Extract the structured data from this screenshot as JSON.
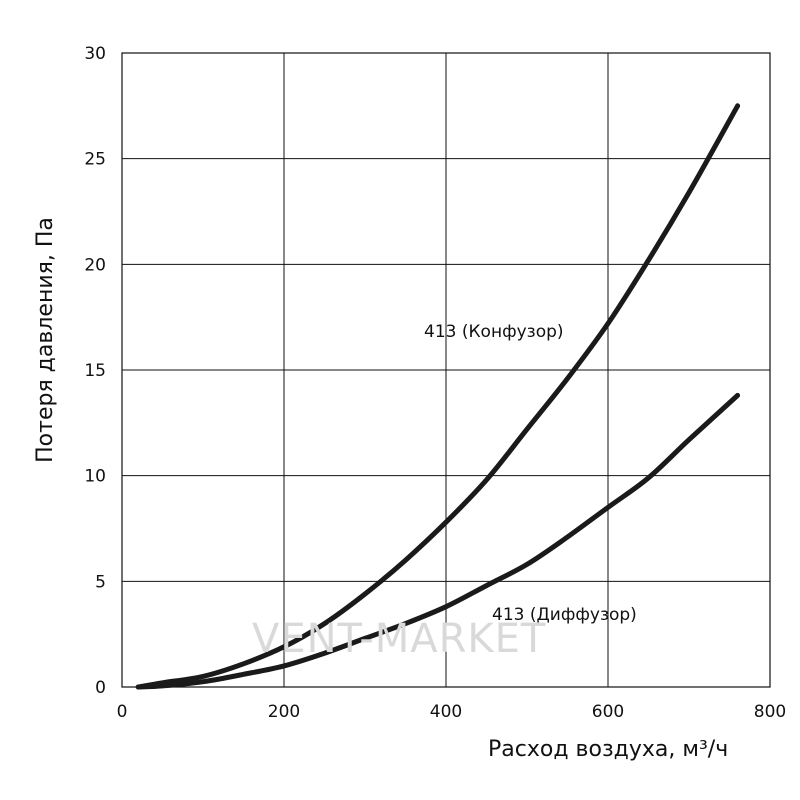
{
  "chart_data": {
    "type": "line",
    "title": "",
    "xlabel": "Расход воздуха, м³/ч",
    "ylabel": "Потеря давления, Па",
    "xlim": [
      0,
      800
    ],
    "ylim": [
      0,
      30
    ],
    "xticks": [
      0,
      200,
      400,
      600,
      800
    ],
    "yticks": [
      0,
      5,
      10,
      15,
      20,
      25,
      30
    ],
    "grid": true,
    "legend": "none",
    "watermark": "VENT-MARKET",
    "series": [
      {
        "name": "413 (Конфузор)",
        "color": "#1a1a1a",
        "x": [
          20,
          50,
          100,
          150,
          200,
          250,
          300,
          350,
          400,
          450,
          500,
          550,
          600,
          650,
          700,
          760
        ],
        "y": [
          0.0,
          0.2,
          0.5,
          1.1,
          1.9,
          3.0,
          4.4,
          6.0,
          7.8,
          9.8,
          12.2,
          14.6,
          17.2,
          20.2,
          23.4,
          27.5
        ]
      },
      {
        "name": "413 (Диффузор)",
        "color": "#1a1a1a",
        "x": [
          20,
          50,
          100,
          150,
          200,
          250,
          300,
          350,
          400,
          450,
          500,
          550,
          600,
          650,
          700,
          760
        ],
        "y": [
          0.0,
          0.05,
          0.25,
          0.6,
          1.0,
          1.6,
          2.3,
          3.0,
          3.8,
          4.8,
          5.8,
          7.1,
          8.5,
          9.9,
          11.7,
          13.8
        ]
      }
    ]
  }
}
